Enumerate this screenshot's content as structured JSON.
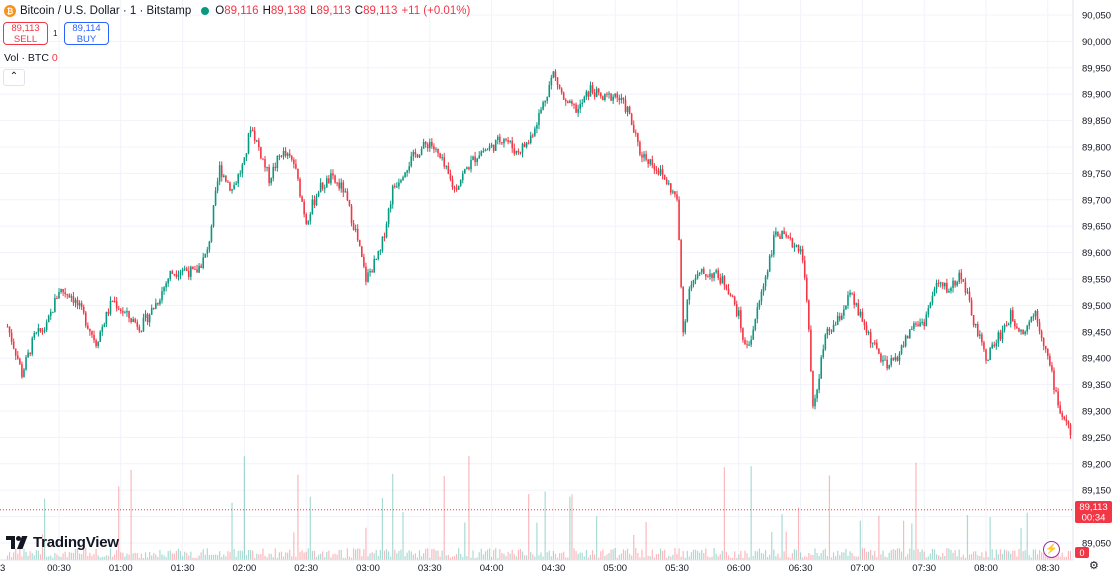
{
  "header": {
    "title": "Bitcoin / U.S. Dollar · 1 · Bitstamp",
    "coin_glyph": "₿",
    "open_label": "O",
    "open": "89,116",
    "high_label": "H",
    "high": "89,138",
    "low_label": "L",
    "low": "89,113",
    "close_label": "C",
    "close": "89,113",
    "change": "+11 (+0.01%)"
  },
  "trade": {
    "sell_price": "89,113",
    "sell_label": "SELL",
    "buy_price": "89,114",
    "buy_label": "BUY",
    "spread": "1"
  },
  "volume": {
    "label": "Vol · BTC",
    "value": "0"
  },
  "collapse_glyph": "⌃",
  "brand": {
    "name": "TradingView"
  },
  "lightning_glyph": "⚡",
  "settings_glyph": "⚙",
  "colors": {
    "up": "#089981",
    "down": "#f23645",
    "accent": "#2962ff"
  },
  "chart_data": {
    "type": "candlestick",
    "interval": "1 minute",
    "price_axis": {
      "range": [
        89030,
        90070
      ],
      "ticks": [
        "90,050",
        "90,000",
        "89,950",
        "89,900",
        "89,850",
        "89,800",
        "89,750",
        "89,700",
        "89,650",
        "89,600",
        "89,550",
        "89,500",
        "89,450",
        "89,400",
        "89,350",
        "89,300",
        "89,250",
        "89,200",
        "89,150",
        "89,100",
        "89,050"
      ]
    },
    "time_axis": {
      "ticks": [
        "00:30",
        "01:00",
        "01:30",
        "02:00",
        "02:30",
        "03:00",
        "03:30",
        "04:00",
        "04:30",
        "05:00",
        "05:30",
        "06:00",
        "06:30",
        "07:00",
        "07:30",
        "08:00",
        "08:30"
      ],
      "left_edge_label": "3"
    },
    "current_price": {
      "value": 89113,
      "label": "89,113",
      "countdown": "00:34"
    },
    "current_volume": "0",
    "price_path": [
      [
        "00:05",
        89460
      ],
      [
        "00:10",
        89400
      ],
      [
        "00:12",
        89370
      ],
      [
        "00:18",
        89440
      ],
      [
        "00:24",
        89460
      ],
      [
        "00:30",
        89530
      ],
      [
        "00:36",
        89520
      ],
      [
        "00:42",
        89480
      ],
      [
        "00:48",
        89430
      ],
      [
        "00:56",
        89510
      ],
      [
        "01:03",
        89480
      ],
      [
        "01:10",
        89460
      ],
      [
        "01:18",
        89510
      ],
      [
        "01:24",
        89560
      ],
      [
        "01:30",
        89570
      ],
      [
        "01:36",
        89560
      ],
      [
        "01:42",
        89600
      ],
      [
        "01:48",
        89760
      ],
      [
        "01:54",
        89720
      ],
      [
        "02:00",
        89770
      ],
      [
        "02:03",
        89840
      ],
      [
        "02:06",
        89810
      ],
      [
        "02:12",
        89740
      ],
      [
        "02:18",
        89790
      ],
      [
        "02:24",
        89770
      ],
      [
        "02:30",
        89660
      ],
      [
        "02:36",
        89720
      ],
      [
        "02:42",
        89740
      ],
      [
        "02:48",
        89720
      ],
      [
        "02:54",
        89640
      ],
      [
        "02:59",
        89550
      ],
      [
        "03:06",
        89600
      ],
      [
        "03:12",
        89720
      ],
      [
        "03:18",
        89760
      ],
      [
        "03:24",
        89790
      ],
      [
        "03:30",
        89810
      ],
      [
        "03:36",
        89770
      ],
      [
        "03:42",
        89720
      ],
      [
        "03:48",
        89760
      ],
      [
        "03:54",
        89790
      ],
      [
        "04:00",
        89800
      ],
      [
        "04:06",
        89820
      ],
      [
        "04:12",
        89790
      ],
      [
        "04:18",
        89810
      ],
      [
        "04:24",
        89870
      ],
      [
        "04:30",
        89940
      ],
      [
        "04:36",
        89880
      ],
      [
        "04:42",
        89870
      ],
      [
        "04:48",
        89910
      ],
      [
        "04:54",
        89890
      ],
      [
        "05:00",
        89900
      ],
      [
        "05:06",
        89870
      ],
      [
        "05:12",
        89790
      ],
      [
        "05:18",
        89770
      ],
      [
        "05:24",
        89740
      ],
      [
        "05:30",
        89700
      ],
      [
        "05:33",
        89450
      ],
      [
        "05:36",
        89540
      ],
      [
        "05:42",
        89560
      ],
      [
        "05:48",
        89560
      ],
      [
        "05:54",
        89540
      ],
      [
        "06:00",
        89480
      ],
      [
        "06:03",
        89420
      ],
      [
        "06:06",
        89440
      ],
      [
        "06:12",
        89540
      ],
      [
        "06:18",
        89640
      ],
      [
        "06:24",
        89620
      ],
      [
        "06:30",
        89610
      ],
      [
        "06:33",
        89520
      ],
      [
        "06:36",
        89300
      ],
      [
        "06:42",
        89440
      ],
      [
        "06:48",
        89470
      ],
      [
        "06:54",
        89520
      ],
      [
        "07:00",
        89470
      ],
      [
        "07:06",
        89420
      ],
      [
        "07:12",
        89380
      ],
      [
        "07:18",
        89410
      ],
      [
        "07:24",
        89460
      ],
      [
        "07:30",
        89470
      ],
      [
        "07:36",
        89540
      ],
      [
        "07:42",
        89530
      ],
      [
        "07:48",
        89560
      ],
      [
        "07:54",
        89470
      ],
      [
        "08:00",
        89400
      ],
      [
        "08:06",
        89440
      ],
      [
        "08:12",
        89480
      ],
      [
        "08:18",
        89450
      ],
      [
        "08:24",
        89490
      ],
      [
        "08:30",
        89400
      ],
      [
        "08:33",
        89350
      ],
      [
        "08:36",
        89300
      ],
      [
        "08:40",
        89270
      ],
      [
        "08:43",
        89200
      ],
      [
        "08:45",
        89113
      ]
    ]
  }
}
